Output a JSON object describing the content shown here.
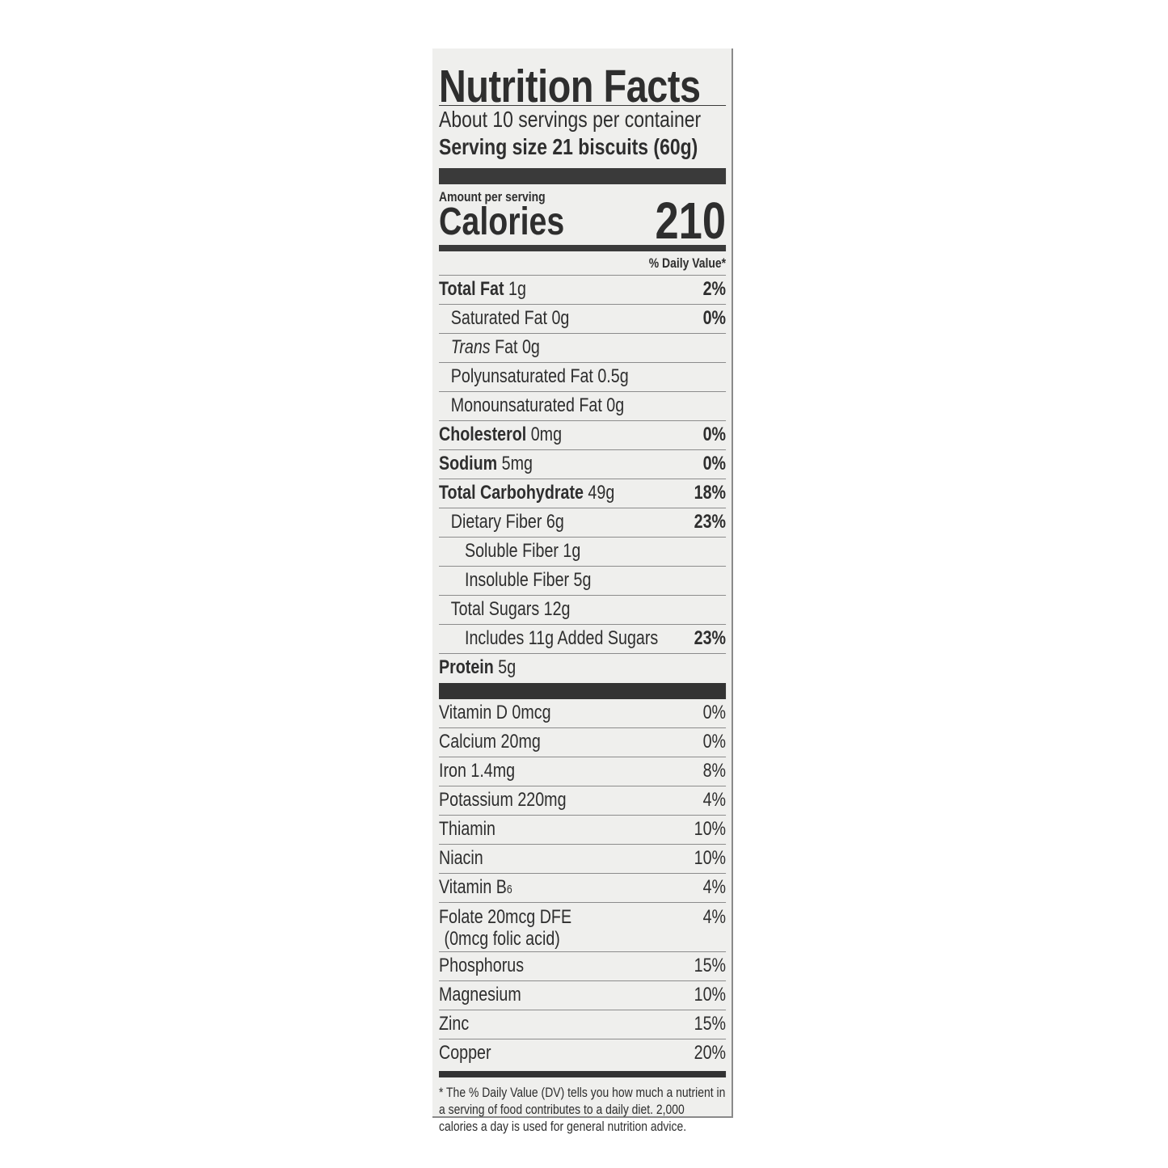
{
  "title": "Nutrition Facts",
  "servings_per_container": "About 10 servings per container",
  "serving_size": "Serving size 21 biscuits (60g)",
  "amount_per_serving": "Amount per serving",
  "calories_label": "Calories",
  "calories_value": "210",
  "daily_value_header": "% Daily Value*",
  "nutrients": [
    {
      "name": "Total Fat",
      "amount": "1g",
      "dv": "2%",
      "bold": true,
      "indent": 0
    },
    {
      "name": "Saturated Fat",
      "amount": "0g",
      "dv": "0%",
      "bold": true,
      "indent": 1,
      "dv_only_bold": true
    },
    {
      "name": "Trans",
      "amount": "Fat 0g",
      "dv": "",
      "indent": 1,
      "italic": true
    },
    {
      "name": "Polyunsaturated Fat",
      "amount": "0.5g",
      "dv": "",
      "indent": 1
    },
    {
      "name": "Monounsaturated Fat",
      "amount": "0g",
      "dv": "",
      "indent": 1
    },
    {
      "name": "Cholesterol",
      "amount": "0mg",
      "dv": "0%",
      "bold": true,
      "indent": 0
    },
    {
      "name": "Sodium",
      "amount": "5mg",
      "dv": "0%",
      "bold": true,
      "indent": 0
    },
    {
      "name": "Total Carbohydrate",
      "amount": "49g",
      "dv": "18%",
      "bold": true,
      "indent": 0
    },
    {
      "name": "Dietary Fiber",
      "amount": "6g",
      "dv": "23%",
      "indent": 1,
      "dv_only_bold": true
    },
    {
      "name": "Soluble Fiber",
      "amount": "1g",
      "dv": "",
      "indent": 2
    },
    {
      "name": "Insoluble Fiber",
      "amount": "5g",
      "dv": "",
      "indent": 2
    },
    {
      "name": "Total Sugars",
      "amount": "12g",
      "dv": "",
      "indent": 1
    },
    {
      "name": "Includes 11g Added Sugars",
      "amount": "",
      "dv": "23%",
      "indent": 2,
      "dv_only_bold": true
    },
    {
      "name": "Protein",
      "amount": "5g",
      "dv": "",
      "bold": true,
      "indent": 0
    }
  ],
  "vitamins": [
    {
      "name": "Vitamin D",
      "amount": "0mcg",
      "dv": "0%"
    },
    {
      "name": "Calcium",
      "amount": "20mg",
      "dv": "0%"
    },
    {
      "name": "Iron",
      "amount": "1.4mg",
      "dv": "8%"
    },
    {
      "name": "Potassium",
      "amount": "220mg",
      "dv": "4%"
    },
    {
      "name": "Thiamin",
      "amount": "",
      "dv": "10%"
    },
    {
      "name": "Niacin",
      "amount": "",
      "dv": "10%"
    },
    {
      "name": "Vitamin B",
      "sub": "6",
      "amount": "",
      "dv": "4%"
    },
    {
      "name": "Folate",
      "amount": "20mcg DFE",
      "line2": "(0mcg folic acid)",
      "dv": "4%"
    },
    {
      "name": "Phosphorus",
      "amount": "",
      "dv": "15%"
    },
    {
      "name": "Magnesium",
      "amount": "",
      "dv": "10%"
    },
    {
      "name": "Zinc",
      "amount": "",
      "dv": "15%"
    },
    {
      "name": "Copper",
      "amount": "",
      "dv": "20%"
    }
  ],
  "footnote": "* The % Daily Value (DV) tells you how much a nutrient in a serving of food contributes to a daily diet. 2,000 calories a day is used for general nutrition advice."
}
